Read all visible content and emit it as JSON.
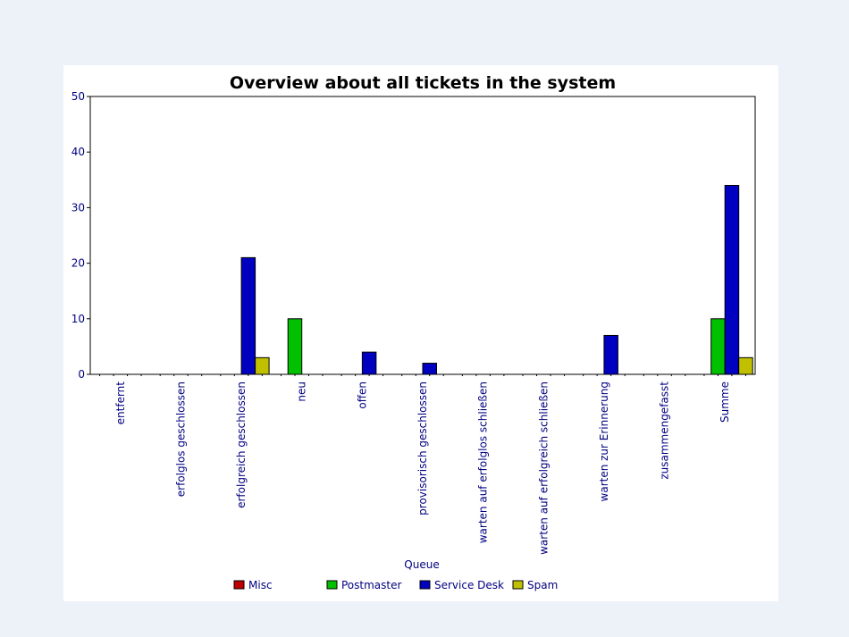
{
  "colors": {
    "page_background": "#edf1f8",
    "panel_background": "#ffffff",
    "axis_text": "#000080",
    "title_text": "#000000"
  },
  "chart_data": {
    "type": "bar",
    "title": "Overview about all tickets in the system",
    "xlabel": "Queue",
    "ylabel": "",
    "ylim": [
      0,
      50
    ],
    "yticks": [
      0,
      10,
      20,
      30,
      40,
      50
    ],
    "grid": false,
    "legend_position": "bottom",
    "categories": [
      "entfernt",
      "erfolglos geschlossen",
      "erfolgreich geschlossen",
      "neu",
      "offen",
      "provisorisch geschlossen",
      "warten auf erfolglos schließen",
      "warten auf erfolgreich schließen",
      "warten zur Erinnerung",
      "zusammengefasst",
      "Summe"
    ],
    "series": [
      {
        "name": "Misc",
        "color": "#c00000",
        "values": [
          0,
          0,
          0,
          0,
          0,
          0,
          0,
          0,
          0,
          0,
          0
        ]
      },
      {
        "name": "Postmaster",
        "color": "#00c000",
        "values": [
          0,
          0,
          0,
          10,
          0,
          0,
          0,
          0,
          0,
          0,
          10
        ]
      },
      {
        "name": "Service Desk",
        "color": "#0000c0",
        "values": [
          0,
          0,
          21,
          0,
          4,
          2,
          0,
          0,
          7,
          0,
          34
        ]
      },
      {
        "name": "Spam",
        "color": "#c0c000",
        "values": [
          0,
          0,
          3,
          0,
          0,
          0,
          0,
          0,
          0,
          0,
          3
        ]
      }
    ]
  }
}
